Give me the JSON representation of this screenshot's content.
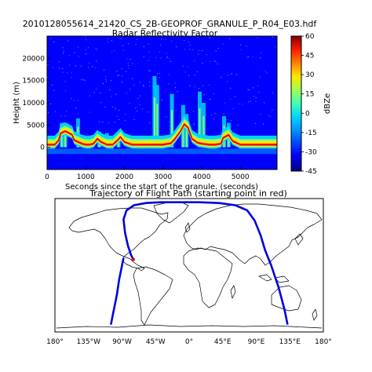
{
  "file_title": "2010128055614_21420_CS_2B-GEOPROF_GRANULE_P_R04_E03.hdf",
  "chart_data": [
    {
      "type": "heatmap",
      "title": "Radar Reflectivity Factor",
      "xlabel": "Seconds since the start of the granule. (seconds)",
      "ylabel": "Height (m)",
      "xlim": [
        0,
        5950
      ],
      "ylim": [
        -5000,
        25000
      ],
      "xticks": [
        0,
        1000,
        2000,
        3000,
        4000,
        5000
      ],
      "yticks": [
        0,
        5000,
        10000,
        15000,
        20000
      ],
      "colorbar": {
        "label": "dBZe",
        "range": [
          -45,
          60
        ],
        "ticks": [
          60,
          45,
          30,
          15,
          0,
          -15,
          -30,
          -45
        ],
        "colors": [
          "#000080",
          "#0000ff",
          "#0080ff",
          "#00d4ff",
          "#40ffb8",
          "#a0ff50",
          "#ffe600",
          "#ff8000",
          "#ff1a00",
          "#800000"
        ]
      },
      "surface_echo": {
        "x": [
          0,
          200,
          300,
          350,
          450,
          500,
          650,
          700,
          900,
          1000,
          1100,
          1200,
          1300,
          1400,
          1550,
          1600,
          1700,
          1800,
          1900,
          2000,
          2200,
          2500,
          2800,
          3000,
          3200,
          3300,
          3450,
          3550,
          3650,
          3700,
          3750,
          3900,
          4000,
          4200,
          4350,
          4500,
          4550,
          4700,
          4800,
          5000,
          5200,
          5400,
          5600,
          5950
        ],
        "height": [
          0,
          0,
          1000,
          2500,
          3000,
          2900,
          2200,
          1000,
          200,
          0,
          0,
          200,
          1300,
          600,
          0,
          0,
          0,
          800,
          1700,
          600,
          0,
          0,
          0,
          0,
          300,
          1200,
          3000,
          4600,
          3800,
          2500,
          1300,
          400,
          200,
          0,
          0,
          200,
          1500,
          2200,
          800,
          0,
          0,
          0,
          0,
          0
        ]
      },
      "cloud_columns": [
        {
          "x": 380,
          "top": 5500
        },
        {
          "x": 470,
          "top": 5000
        },
        {
          "x": 800,
          "top": 6500
        },
        {
          "x": 1350,
          "top": 3500
        },
        {
          "x": 1550,
          "top": 3200
        },
        {
          "x": 1850,
          "top": 3000
        },
        {
          "x": 2780,
          "top": 16000
        },
        {
          "x": 2850,
          "top": 14000
        },
        {
          "x": 3230,
          "top": 12000
        },
        {
          "x": 3520,
          "top": 9500
        },
        {
          "x": 3610,
          "top": 7500
        },
        {
          "x": 3950,
          "top": 12500
        },
        {
          "x": 4050,
          "top": 10000
        },
        {
          "x": 4580,
          "top": 7000
        },
        {
          "x": 4700,
          "top": 5500
        }
      ]
    },
    {
      "type": "line",
      "title": "Trajectory of Flight Path (starting point in red)",
      "xlim": [
        -180,
        180
      ],
      "ylim": [
        -90,
        90
      ],
      "xtick_labels": [
        "180°",
        "135°W",
        "90°W",
        "45°W",
        "0°",
        "45°E",
        "90°E",
        "135°E",
        "180°"
      ],
      "xtick_values": [
        -180,
        -135,
        -90,
        -45,
        0,
        45,
        90,
        135,
        180
      ],
      "start_point": {
        "lon": -75,
        "lat": 8
      },
      "series": [
        {
          "values_lon": [
            -75,
            -78,
            -82,
            -86,
            -88,
            -84,
            -74,
            -58,
            -38,
            -12,
            14,
            40,
            62,
            78,
            88,
            96,
            102,
            110,
            120,
            128,
            132
          ],
          "values_lat": [
            8,
            14,
            26,
            44,
            62,
            74,
            81,
            84,
            85,
            85,
            85,
            84,
            81,
            74,
            60,
            40,
            20,
            0,
            -30,
            -60,
            -80
          ]
        },
        {
          "values_lon": [
            -105,
            -102,
            -97,
            -94,
            -90,
            -88
          ],
          "values_lat": [
            -80,
            -65,
            -40,
            -20,
            0,
            10
          ]
        }
      ],
      "line_color": "#0000dd",
      "start_color": "#e60000"
    }
  ]
}
